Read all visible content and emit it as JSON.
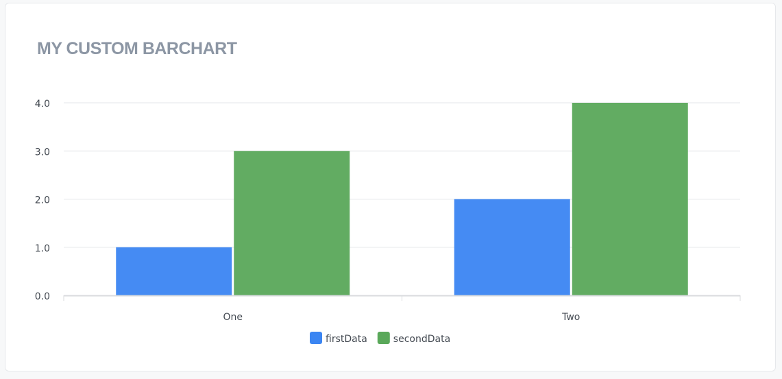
{
  "card": {
    "title": "MY CUSTOM BARCHART"
  },
  "chart_data": {
    "type": "bar",
    "title": "MY CUSTOM BARCHART",
    "categories": [
      "One",
      "Two"
    ],
    "series": [
      {
        "name": "firstData",
        "values": [
          1,
          2
        ],
        "color": "#3b85f2"
      },
      {
        "name": "secondData",
        "values": [
          3,
          4
        ],
        "color": "#5aa85a"
      }
    ],
    "ylim": [
      0,
      4
    ],
    "yticks": [
      "0.0",
      "1.0",
      "2.0",
      "3.0",
      "4.0"
    ],
    "xlabel": "",
    "ylabel": "",
    "grid": true,
    "legend_position": "bottom-center"
  }
}
